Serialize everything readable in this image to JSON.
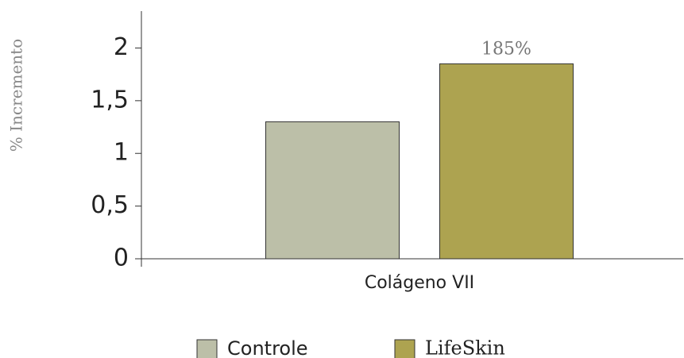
{
  "chart_data": {
    "type": "bar",
    "y_label": "% Incremento",
    "categories": [
      "Colágeno VII"
    ],
    "series": [
      {
        "name": "Controle",
        "color": "#bcbfa8",
        "values": [
          1.3
        ]
      },
      {
        "name": "LifeSkin",
        "color": "#ada350",
        "values": [
          1.85
        ],
        "value_labels": [
          "185%"
        ]
      }
    ],
    "ylim": [
      0,
      2.35
    ],
    "yticks": [
      0,
      {
        "value": 0.5,
        "label": "0,5"
      },
      1,
      {
        "value": 1.5,
        "label": "1,5"
      },
      2
    ],
    "legend": "bottom"
  }
}
